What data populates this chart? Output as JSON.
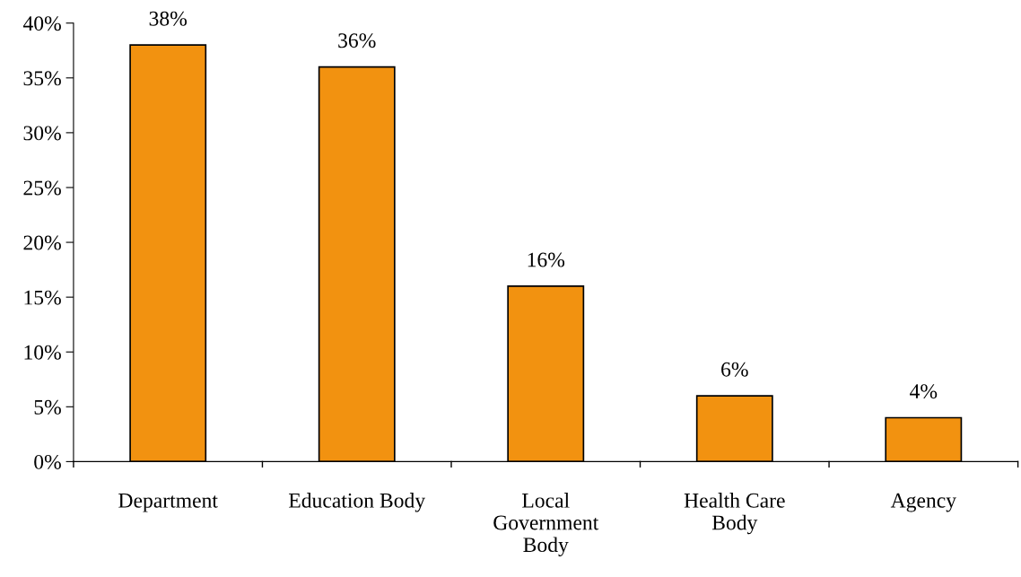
{
  "chart_data": {
    "type": "bar",
    "categories": [
      "Department",
      "Education Body",
      "Local Government Body",
      "Health Care Body",
      "Agency"
    ],
    "values": [
      38,
      36,
      16,
      6,
      4
    ],
    "value_labels": [
      "38%",
      "36%",
      "16%",
      "6%",
      "4%"
    ],
    "color": "#f29210",
    "ylim": [
      0,
      40
    ],
    "yticks": [
      {
        "value": 0,
        "label": "0%"
      },
      {
        "value": 5,
        "label": "5%"
      },
      {
        "value": 10,
        "label": "10%"
      },
      {
        "value": 15,
        "label": "15%"
      },
      {
        "value": 20,
        "label": "20%"
      },
      {
        "value": 25,
        "label": "25%"
      },
      {
        "value": 30,
        "label": "30%"
      },
      {
        "value": 35,
        "label": "35%"
      },
      {
        "value": 40,
        "label": "40%"
      }
    ],
    "grid": false,
    "legend": false
  }
}
